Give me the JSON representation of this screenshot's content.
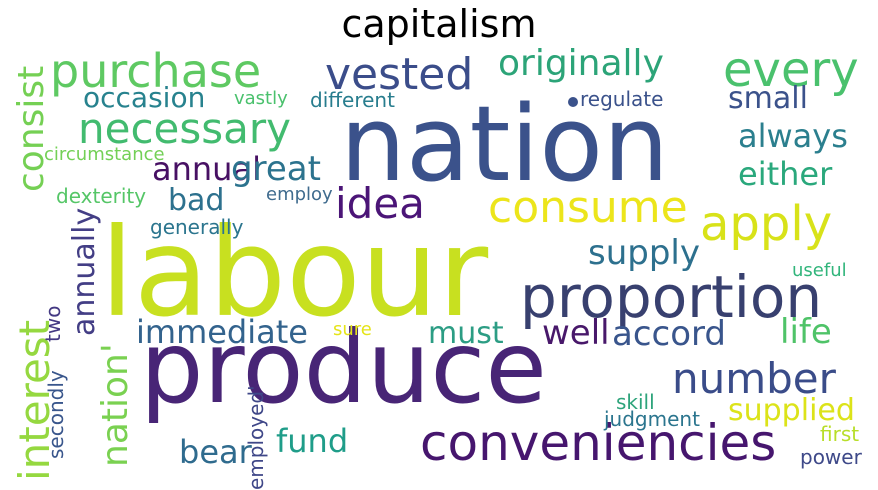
{
  "title": "capitalism",
  "words": [
    {
      "text": "labour",
      "color": "#c8e020"
    },
    {
      "text": "nation",
      "color": "#3b528b"
    },
    {
      "text": "produce",
      "color": "#482576"
    },
    {
      "text": "proportion",
      "color": "#38406f"
    },
    {
      "text": "conveniencies",
      "color": "#46166e"
    },
    {
      "text": "purchase",
      "color": "#5ec962"
    },
    {
      "text": "vested",
      "color": "#3b4d8a"
    },
    {
      "text": "every",
      "color": "#4ac16d"
    },
    {
      "text": "originally",
      "color": "#2ca478"
    },
    {
      "text": "necessary",
      "color": "#42bb6f"
    },
    {
      "text": "consume",
      "color": "#ece51b"
    },
    {
      "text": "apply",
      "color": "#d8e219"
    },
    {
      "text": "idea",
      "color": "#4b1577"
    },
    {
      "text": "number",
      "color": "#3a4c89"
    },
    {
      "text": "interest",
      "color": "#95d840"
    },
    {
      "text": "consist",
      "color": "#75d054"
    },
    {
      "text": "occasion",
      "color": "#27828e"
    },
    {
      "text": "small",
      "color": "#3b528b"
    },
    {
      "text": "always",
      "color": "#2b7f8e"
    },
    {
      "text": "either",
      "color": "#2aa87c"
    },
    {
      "text": "annual",
      "color": "#471063"
    },
    {
      "text": "great",
      "color": "#2c738e"
    },
    {
      "text": "bad",
      "color": "#2d718e"
    },
    {
      "text": "annually",
      "color": "#433e85"
    },
    {
      "text": "supply",
      "color": "#2d708e"
    },
    {
      "text": "immediate",
      "color": "#33638d"
    },
    {
      "text": "must",
      "color": "#2c9d84"
    },
    {
      "text": "well",
      "color": "#48186a"
    },
    {
      "text": "accord",
      "color": "#39558c"
    },
    {
      "text": "life",
      "color": "#4fc368"
    },
    {
      "text": "supplied",
      "color": "#dce319"
    },
    {
      "text": "fund",
      "color": "#1f9d89"
    },
    {
      "text": "bear",
      "color": "#2f6b8e"
    },
    {
      "text": "nation'",
      "color": "#7ad151"
    },
    {
      "text": "two",
      "color": "#443983"
    },
    {
      "text": "secondly",
      "color": "#39568c"
    },
    {
      "text": "employed'",
      "color": "#3f4788"
    },
    {
      "text": "judgment",
      "color": "#2b758e"
    },
    {
      "text": "skill",
      "color": "#2ea47b"
    },
    {
      "text": "first",
      "color": "#b8de29"
    },
    {
      "text": "power",
      "color": "#3e4989"
    },
    {
      "text": "useful",
      "color": "#31b57b"
    },
    {
      "text": "sure",
      "color": "#e5e419"
    },
    {
      "text": "generally",
      "color": "#2b758e"
    },
    {
      "text": "employ",
      "color": "#3f6b8e"
    },
    {
      "text": "dexterity",
      "color": "#55c667"
    },
    {
      "text": "circumstance",
      "color": "#73d056"
    },
    {
      "text": "vastly",
      "color": "#4ac16d"
    },
    {
      "text": "different",
      "color": "#287d8e"
    },
    {
      "text": "regulate",
      "color": "#3b528b"
    }
  ],
  "dot_color": "#3b528b"
}
